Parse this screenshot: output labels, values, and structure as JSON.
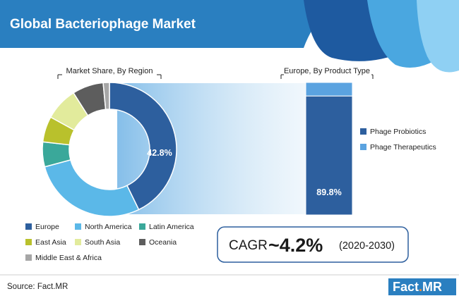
{
  "header": {
    "title": "Global Bacteriophage Market"
  },
  "colors": {
    "header_bg": "#2a7fc0",
    "europe": "#2d5f9e",
    "north_america": "#5bb8e8",
    "latin_america": "#3aa89a",
    "east_asia": "#b9c12c",
    "south_asia": "#e2eb9c",
    "oceania": "#5d5d5d",
    "middle_east_africa": "#a6a6a6",
    "phage_probiotics": "#2d5f9e",
    "phage_therapeutics": "#5ba3e0"
  },
  "chart_data": [
    {
      "type": "pie",
      "title": "Market Share, By Region",
      "donut": true,
      "slices": [
        {
          "key": "europe",
          "label": "Europe",
          "value": 42.8,
          "value_label": "42.8%"
        },
        {
          "key": "north_america",
          "label": "North America",
          "value": 28.0
        },
        {
          "key": "latin_america",
          "label": "Latin America",
          "value": 6.0
        },
        {
          "key": "east_asia",
          "label": "East Asia",
          "value": 6.2
        },
        {
          "key": "south_asia",
          "label": "South Asia",
          "value": 8.0
        },
        {
          "key": "oceania",
          "label": "Oceania",
          "value": 7.5
        },
        {
          "key": "middle_east_africa",
          "label": "Middle East & Africa",
          "value": 1.5
        }
      ],
      "legend_position": "bottom-left"
    },
    {
      "type": "bar",
      "stacked": true,
      "title": "Europe, By Product Type",
      "series": [
        {
          "key": "phage_probiotics",
          "name": "Phage Probiotics",
          "value": 89.8,
          "value_label": "89.8%"
        },
        {
          "key": "phage_therapeutics",
          "name": "Phage Therapeutics",
          "value": 10.2
        }
      ],
      "legend_position": "right"
    }
  ],
  "cagr": {
    "label": "CAGR",
    "value": "~4.2%",
    "period": "(2020-2030)"
  },
  "footer": {
    "source": "Source: Fact.MR",
    "brand_fact": "Fact",
    "brand_dot": ".",
    "brand_mr": "MR"
  }
}
